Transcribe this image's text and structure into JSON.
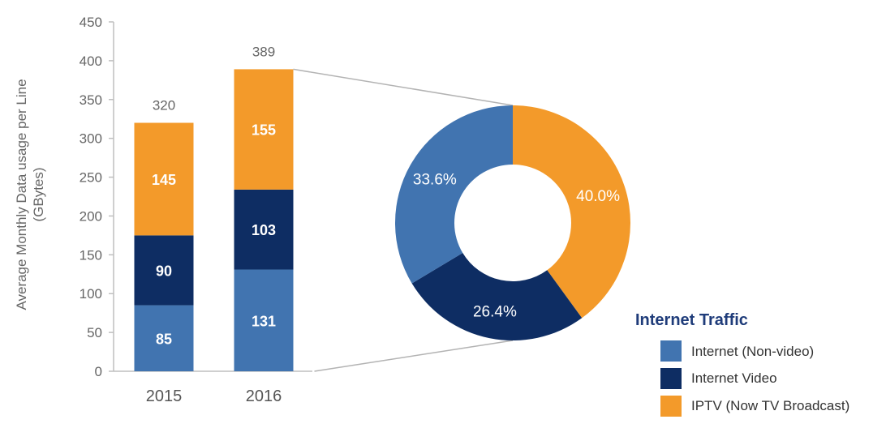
{
  "chart_data": [
    {
      "type": "bar",
      "stacked": true,
      "categories": [
        "2015",
        "2016"
      ],
      "series": [
        {
          "name": "Internet (Non-video)",
          "values": [
            85,
            131
          ]
        },
        {
          "name": "Internet Video",
          "values": [
            90,
            103
          ]
        },
        {
          "name": "IPTV (Now TV Broadcast)",
          "values": [
            145,
            155
          ]
        }
      ],
      "totals": [
        320,
        389
      ],
      "ylabel_lines": [
        "Average Monthly Data usage per Line",
        "(GBytes)"
      ],
      "ylim": [
        0,
        450
      ],
      "yticks": [
        0,
        50,
        100,
        150,
        200,
        250,
        300,
        350,
        400,
        450
      ]
    },
    {
      "type": "pie",
      "donut": true,
      "labels": [
        "Internet (Non-video)",
        "Internet Video",
        "IPTV (Now TV Broadcast)"
      ],
      "values": [
        33.6,
        26.4,
        40.0
      ],
      "value_labels": [
        "33.6%",
        "26.4%",
        "40.0%"
      ]
    }
  ],
  "legend": {
    "title": "Internet Traffic",
    "placement": "bottom-right",
    "items": [
      {
        "label": "Internet (Non-video)",
        "color": "#4174b0"
      },
      {
        "label": "Internet Video",
        "color": "#0e2d63"
      },
      {
        "label": "IPTV (Now TV Broadcast)",
        "color": "#f39a2a"
      }
    ]
  },
  "colors": {
    "non_video": "#4174b0",
    "video": "#0e2d63",
    "iptv": "#f39a2a"
  }
}
